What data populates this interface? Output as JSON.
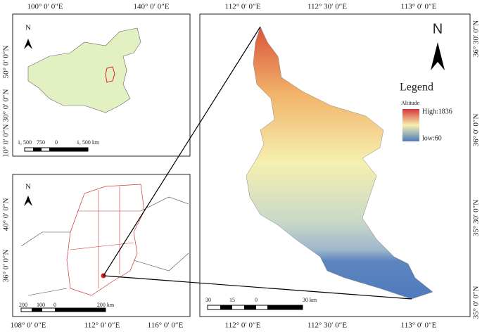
{
  "inset_china": {
    "top_labels": [
      "100° 0′ 0″E",
      "140° 0′ 0″E"
    ],
    "left_labels": [
      "50° 0′ 0″N",
      "30° 0′ 0″N",
      "10° 0′ 0″N"
    ],
    "north": "N",
    "scale": [
      "1, 500",
      "750",
      "0",
      "1, 500 km"
    ]
  },
  "inset_region": {
    "left_labels": [
      "40° 0′ 0″N",
      "36° 0′ 0″N"
    ],
    "bottom_labels": [
      "108° 0′ 0″E",
      "112° 0′ 0″E",
      "116° 0′ 0″E"
    ],
    "north": "N",
    "scale": [
      "200",
      "100",
      "0",
      "200 km"
    ]
  },
  "main_map": {
    "top_labels": [
      "112° 0′ 0″E",
      "112° 30′ 0″E",
      "113° 0′ 0″E"
    ],
    "bottom_labels": [
      "112° 0′ 0″E",
      "112° 30′ 0″E",
      "113° 0′ 0″E"
    ],
    "right_labels": [
      "36° 30′ 0″N",
      "36° 0′ 0″N",
      "35° 30′ 0″N",
      "35° 0′ 0″N"
    ],
    "north": "N",
    "legend": {
      "title": "Legend",
      "subtitle": "Altitude",
      "high": "High:1836",
      "low": "low:60"
    },
    "scale": [
      "30",
      "15",
      "0",
      "30 km"
    ]
  }
}
